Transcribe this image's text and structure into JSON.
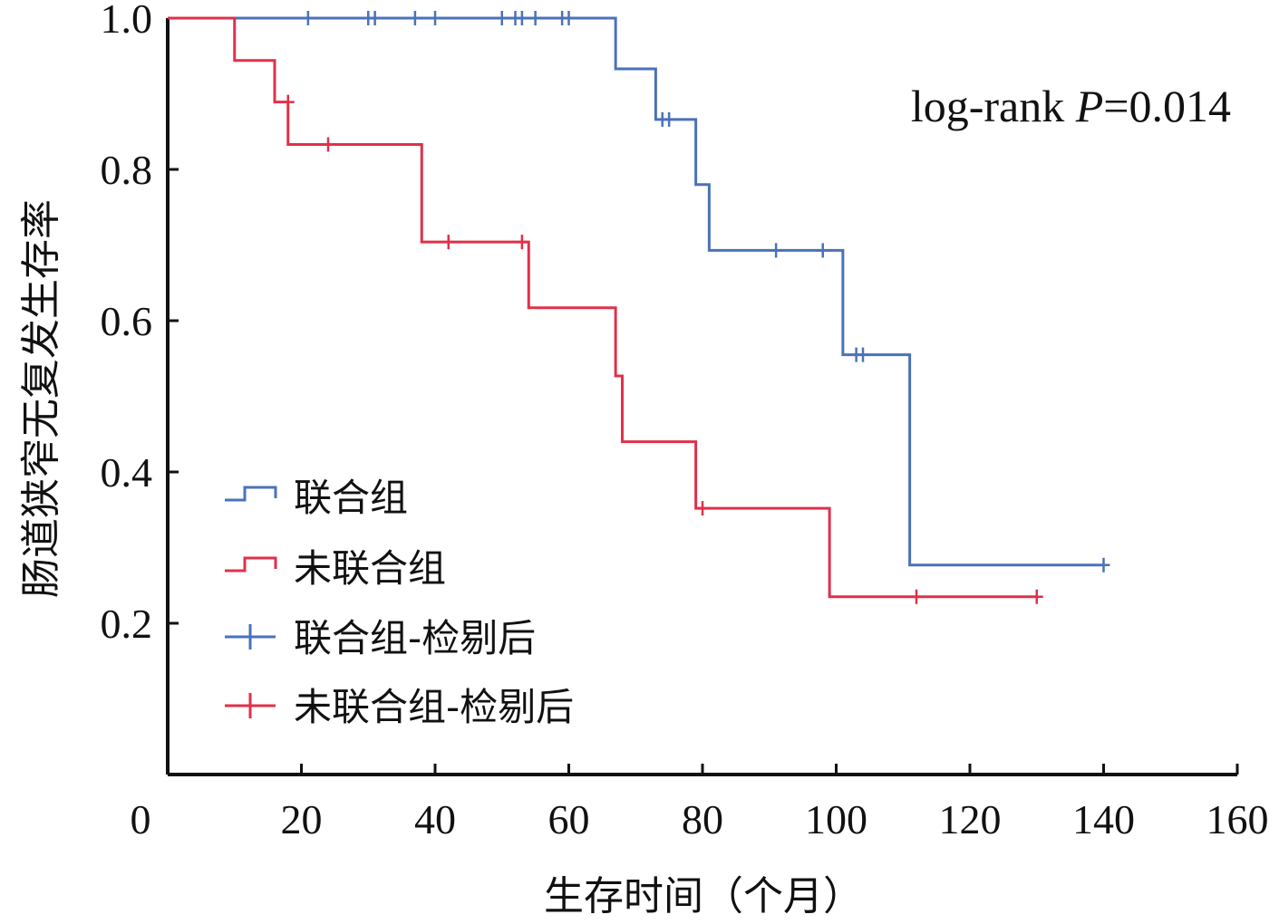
{
  "chart_data": {
    "type": "line",
    "subtype": "kaplan-meier-step",
    "xlabel": "生存时间（个月）",
    "ylabel": "肠道狭窄无复发生存率",
    "xlim": [
      0,
      160
    ],
    "ylim": [
      0,
      1.0
    ],
    "x_ticks": [
      "0",
      "20",
      "40",
      "60",
      "80",
      "100",
      "120",
      "140",
      "160"
    ],
    "y_ticks": [
      "0.2",
      "0.4",
      "0.6",
      "0.8",
      "1.0"
    ],
    "annotation": {
      "prefix": "log-rank ",
      "italic": "P",
      "suffix": "=0.014"
    },
    "legend_position": "bottom-left",
    "grid": false,
    "legend": [
      {
        "label": "联合组",
        "style": "step",
        "color": "#4a72b8"
      },
      {
        "label": "未联合组",
        "style": "step",
        "color": "#e0304a"
      },
      {
        "label": "联合组-检剔后",
        "style": "plus",
        "color": "#4a72b8"
      },
      {
        "label": "未联合组-检剔后",
        "style": "plus",
        "color": "#e0304a"
      }
    ],
    "series": [
      {
        "name": "联合组",
        "color": "#4a72b8",
        "steps": [
          [
            0,
            1.0
          ],
          [
            67,
            0.933
          ],
          [
            73,
            0.866
          ],
          [
            79,
            0.78
          ],
          [
            81,
            0.693
          ],
          [
            101,
            0.555
          ],
          [
            111,
            0.277
          ],
          [
            140,
            0.277
          ]
        ],
        "censored": [
          [
            21,
            1.0
          ],
          [
            30,
            1.0
          ],
          [
            31,
            1.0
          ],
          [
            37,
            1.0
          ],
          [
            40,
            1.0
          ],
          [
            50,
            1.0
          ],
          [
            52,
            1.0
          ],
          [
            53,
            1.0
          ],
          [
            55,
            1.0
          ],
          [
            59,
            1.0
          ],
          [
            60,
            1.0
          ],
          [
            74,
            0.866
          ],
          [
            75,
            0.866
          ],
          [
            91,
            0.693
          ],
          [
            98,
            0.693
          ],
          [
            103,
            0.555
          ],
          [
            104,
            0.555
          ],
          [
            140,
            0.277
          ]
        ]
      },
      {
        "name": "未联合组",
        "color": "#e0304a",
        "steps": [
          [
            0,
            1.0
          ],
          [
            10,
            0.944
          ],
          [
            16,
            0.889
          ],
          [
            18,
            0.833
          ],
          [
            38,
            0.704
          ],
          [
            54,
            0.617
          ],
          [
            67,
            0.527
          ],
          [
            68,
            0.44
          ],
          [
            79,
            0.352
          ],
          [
            99,
            0.235
          ],
          [
            130,
            0.235
          ]
        ],
        "censored": [
          [
            18,
            0.889
          ],
          [
            24,
            0.833
          ],
          [
            42,
            0.704
          ],
          [
            53,
            0.704
          ],
          [
            80,
            0.352
          ],
          [
            112,
            0.235
          ],
          [
            130,
            0.235
          ]
        ]
      }
    ]
  }
}
